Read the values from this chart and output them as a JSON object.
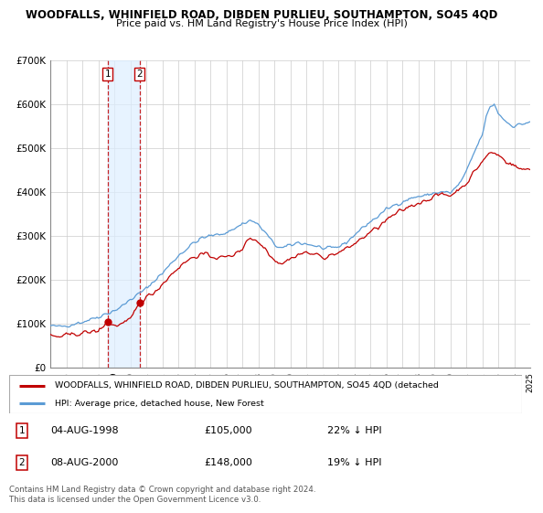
{
  "title": "WOODFALLS, WHINFIELD ROAD, DIBDEN PURLIEU, SOUTHAMPTON, SO45 4QD",
  "subtitle": "Price paid vs. HM Land Registry's House Price Index (HPI)",
  "ylabel_ticks": [
    "£0",
    "£100K",
    "£200K",
    "£300K",
    "£400K",
    "£500K",
    "£600K",
    "£700K"
  ],
  "ytick_values": [
    0,
    100000,
    200000,
    300000,
    400000,
    500000,
    600000,
    700000
  ],
  "ylim": [
    0,
    700000
  ],
  "hpi_color": "#5b9bd5",
  "price_color": "#c00000",
  "shade_color": "#ddeeff",
  "legend_label_red": "WOODFALLS, WHINFIELD ROAD, DIBDEN PURLIEU, SOUTHAMPTON, SO45 4QD (detached",
  "legend_label_blue": "HPI: Average price, detached house, New Forest",
  "transactions": [
    {
      "label": "1",
      "date": "04-AUG-1998",
      "price": 105000,
      "pct": "22%",
      "dir": "↓",
      "x_year": 1998.58
    },
    {
      "label": "2",
      "date": "08-AUG-2000",
      "price": 148000,
      "pct": "19%",
      "dir": "↓",
      "x_year": 2000.58
    }
  ],
  "footnote1": "Contains HM Land Registry data © Crown copyright and database right 2024.",
  "footnote2": "This data is licensed under the Open Government Licence v3.0.",
  "xlim": [
    1995,
    2025
  ],
  "xtick_years": [
    1995,
    1996,
    1997,
    1998,
    1999,
    2000,
    2001,
    2002,
    2003,
    2004,
    2005,
    2006,
    2007,
    2008,
    2009,
    2010,
    2011,
    2012,
    2013,
    2014,
    2015,
    2016,
    2017,
    2018,
    2019,
    2020,
    2021,
    2022,
    2023,
    2024,
    2025
  ]
}
